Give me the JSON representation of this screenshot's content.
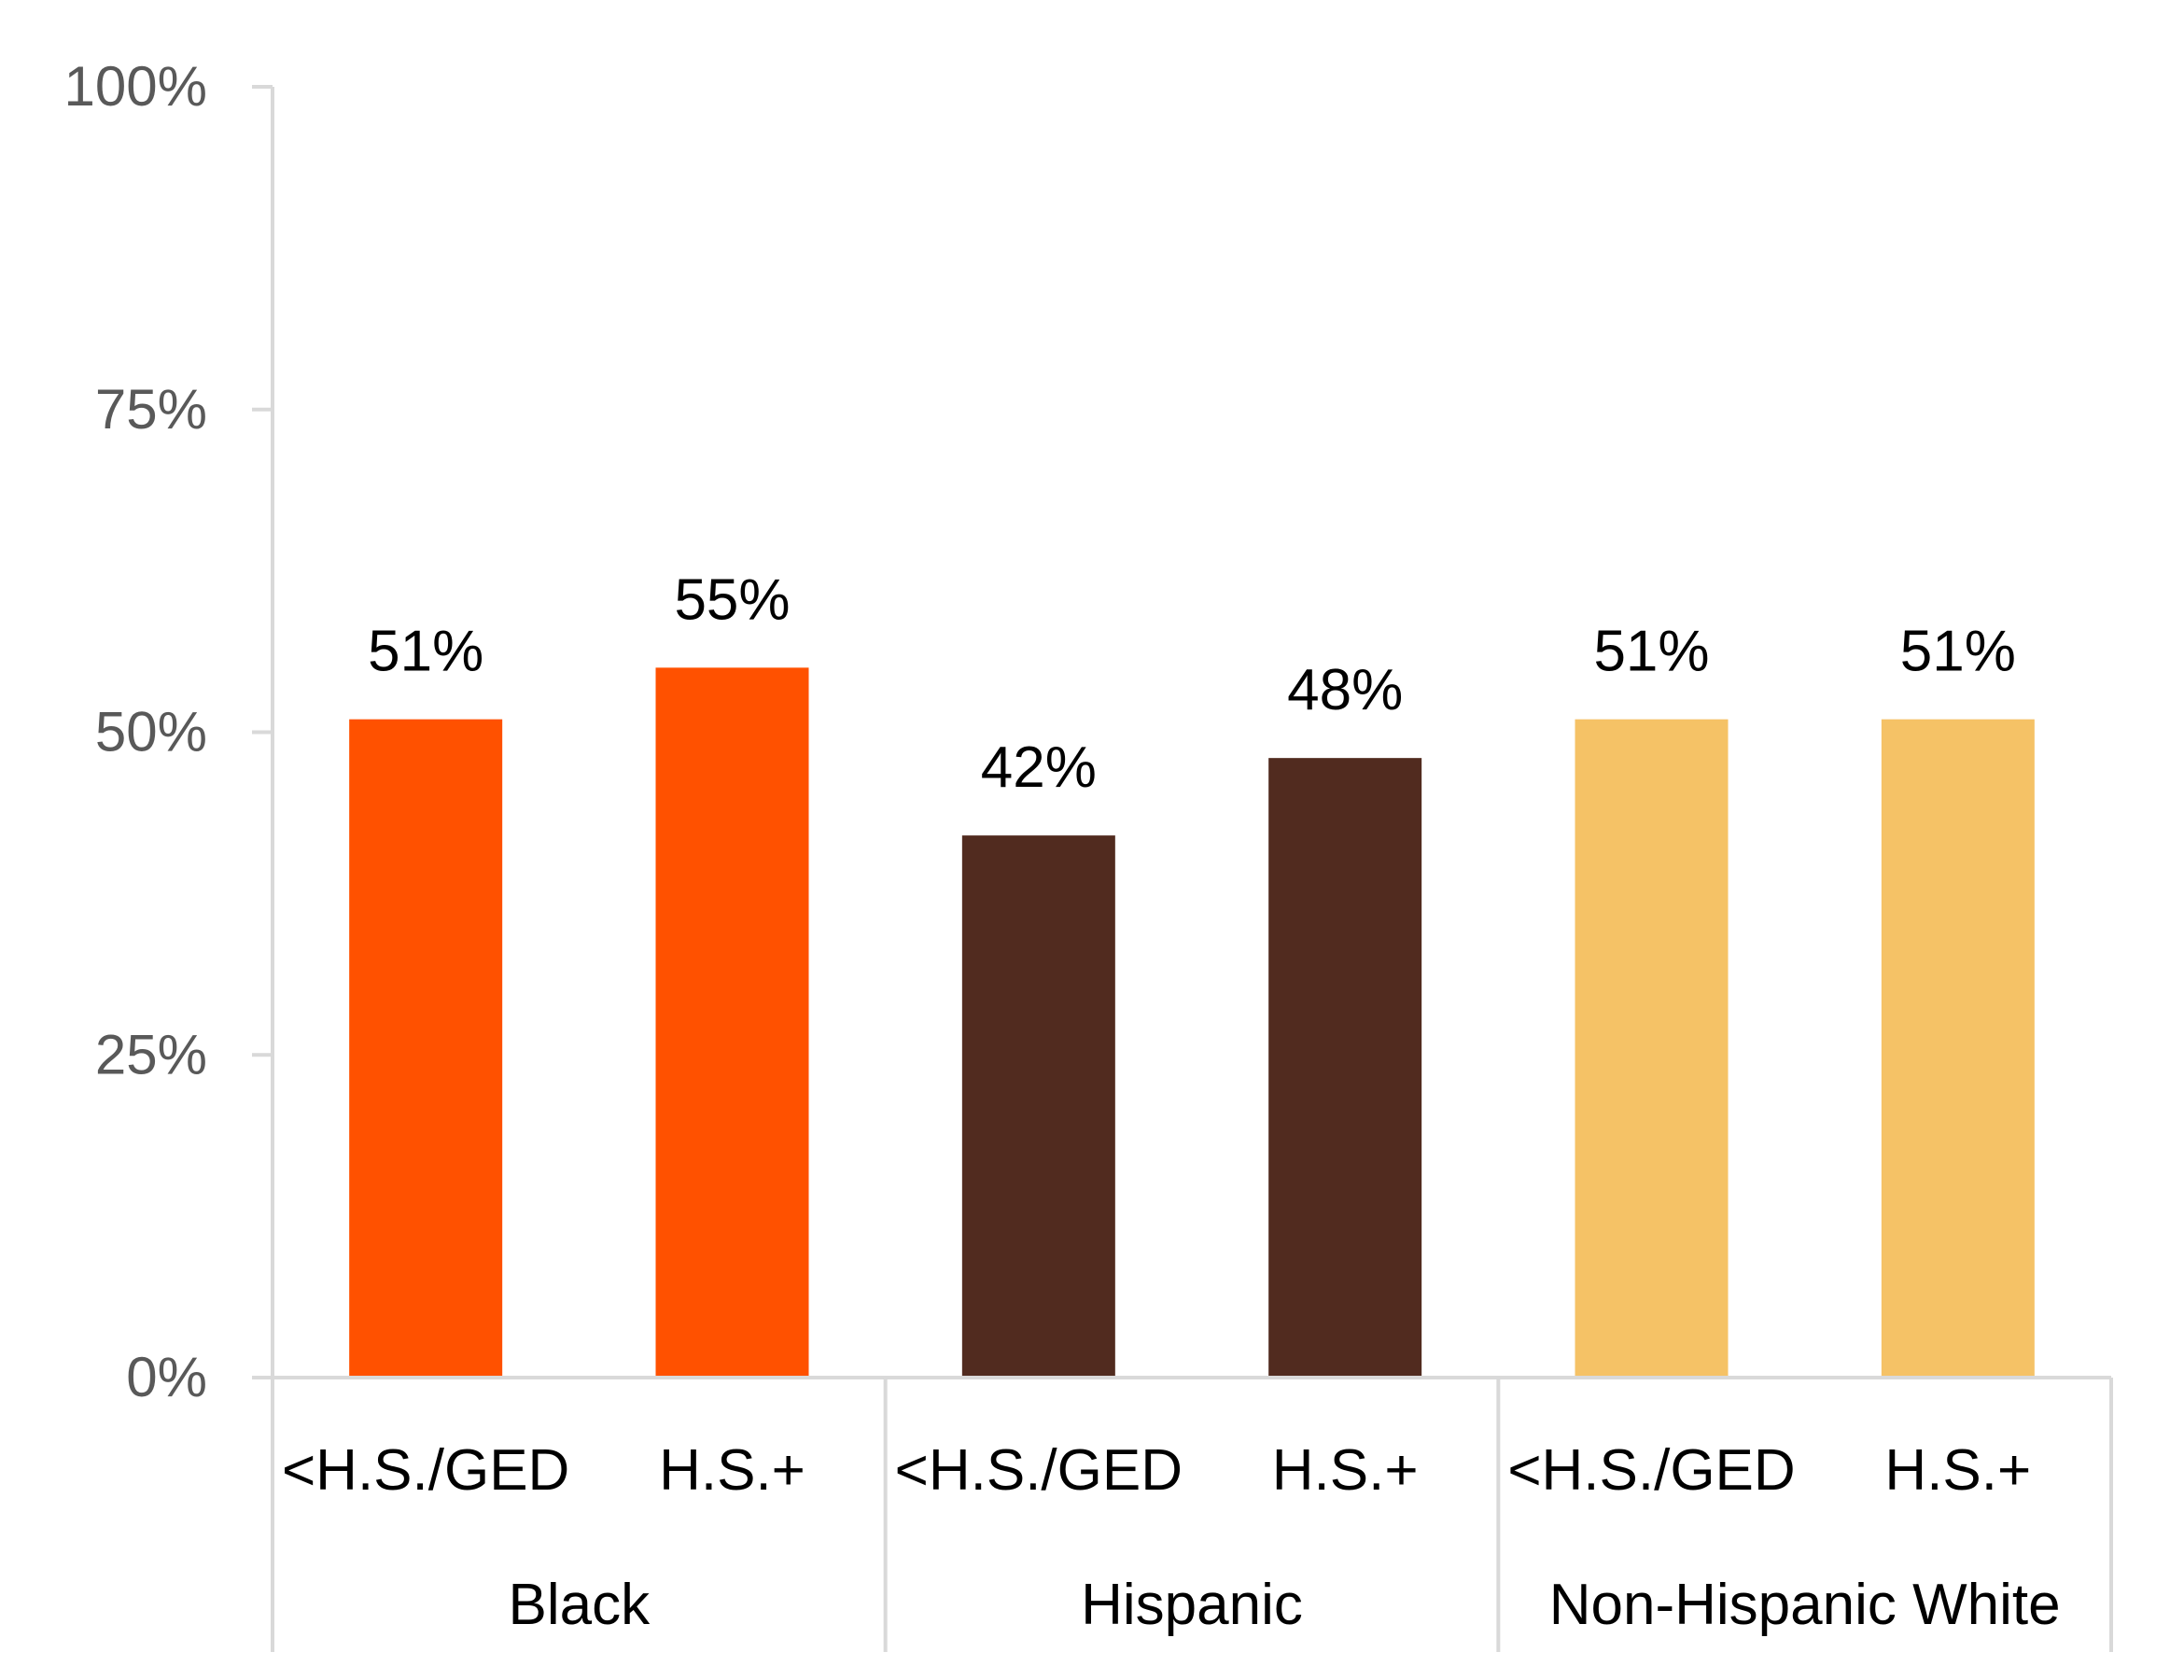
{
  "chart_data": {
    "type": "bar",
    "title": "",
    "xlabel": "",
    "ylabel": "",
    "ylim": [
      0,
      100
    ],
    "y_ticks": [
      "0%",
      "25%",
      "50%",
      "75%",
      "100%"
    ],
    "y_tick_values": [
      0,
      25,
      50,
      75,
      100
    ],
    "grid": false,
    "legend": "none",
    "groups": [
      {
        "name": "Black",
        "color": "#ff5100",
        "bars": [
          {
            "category": "<H.S./GED",
            "value": 51,
            "label": "51%"
          },
          {
            "category": "H.S.+",
            "value": 55,
            "label": "55%"
          }
        ]
      },
      {
        "name": "Hispanic",
        "color": "#512b1f",
        "bars": [
          {
            "category": "<H.S./GED",
            "value": 42,
            "label": "42%"
          },
          {
            "category": "H.S.+",
            "value": 48,
            "label": "48%"
          }
        ]
      },
      {
        "name": "Non-Hispanic White",
        "color": "#f5c266",
        "bars": [
          {
            "category": "<H.S./GED",
            "value": 51,
            "label": "51%"
          },
          {
            "category": "H.S.+",
            "value": 51,
            "label": "51%"
          }
        ]
      }
    ]
  }
}
